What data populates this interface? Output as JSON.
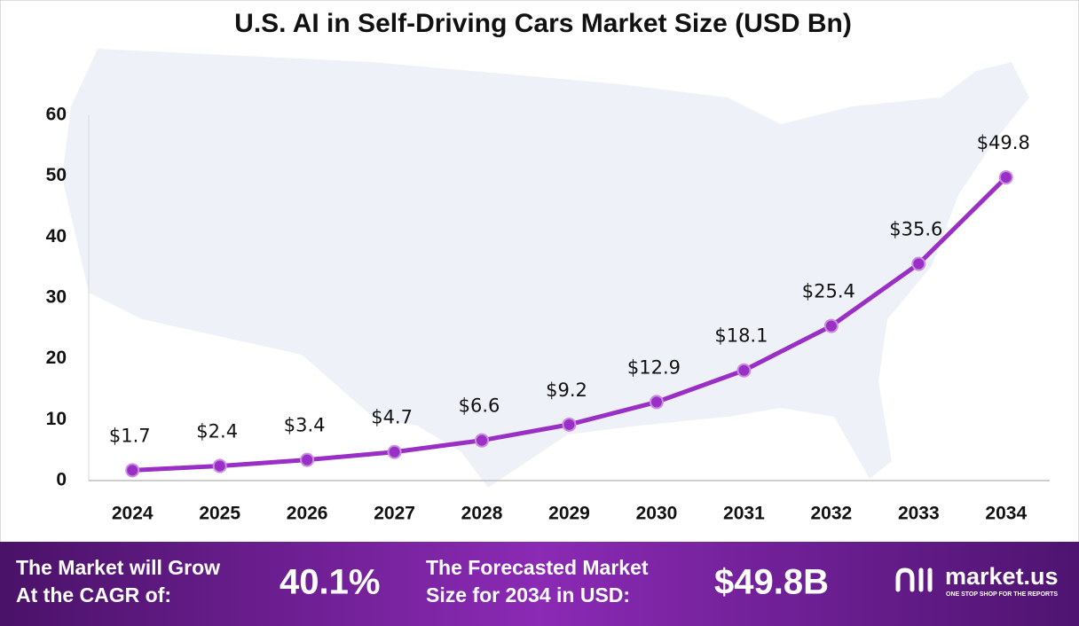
{
  "chart_data": {
    "type": "line",
    "title": "U.S. AI in Self-Driving Cars Market Size (USD Bn)",
    "categories": [
      "2024",
      "2025",
      "2026",
      "2027",
      "2028",
      "2029",
      "2030",
      "2031",
      "2032",
      "2033",
      "2034"
    ],
    "values": [
      1.7,
      2.4,
      3.4,
      4.7,
      6.6,
      9.2,
      12.9,
      18.1,
      25.4,
      35.6,
      49.8
    ],
    "value_labels": [
      "$1.7",
      "$2.4",
      "$3.4",
      "$4.7",
      "$6.6",
      "$9.2",
      "$12.9",
      "$18.1",
      "$25.4",
      "$35.6",
      "$49.8"
    ],
    "color": "#9a2fc6",
    "ylim": [
      0,
      60
    ],
    "yticks": [
      0,
      10,
      20,
      30,
      40,
      50,
      60
    ]
  },
  "footer": {
    "cagr_label": [
      "The Market will Grow",
      "At the CAGR of:"
    ],
    "cagr_value": "40.1%",
    "forecast_label": [
      "The Forecasted Market",
      "Size for 2034 in USD:"
    ],
    "forecast_value": "$49.8B",
    "brand": "market.us",
    "tagline": "ONE STOP SHOP FOR THE REPORTS"
  }
}
